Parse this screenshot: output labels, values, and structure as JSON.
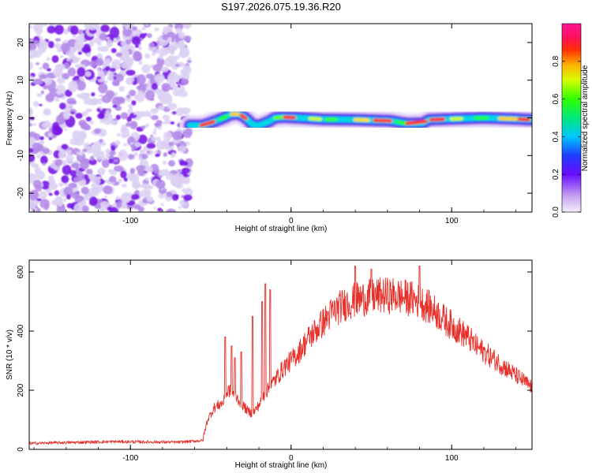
{
  "title": "S197.2026.075.19.36.R20",
  "colors": {
    "noise": "#8a2be2",
    "noise_light": "#d8c4f2",
    "snr_line": "#e8302a",
    "axis": "#000000"
  },
  "chart_data": [
    {
      "type": "heatmap",
      "name": "spectrogram",
      "xlabel": "Height of straight line (km)",
      "ylabel": "Frequency (Hz)",
      "xlim": [
        -163,
        150
      ],
      "ylim": [
        -25,
        25
      ],
      "xticks": [
        -100,
        0,
        100
      ],
      "xtick_labels": [
        "-100",
        "0",
        "100"
      ],
      "yticks": [
        -20,
        -10,
        0,
        10,
        20
      ],
      "ytick_labels": [
        "-20",
        "-10",
        "0",
        "10",
        "20"
      ],
      "noise_region_x": [
        -163,
        -63
      ],
      "signal_start_x": -63,
      "ridge_frequency": [
        [
          -63,
          -2
        ],
        [
          -55,
          -2
        ],
        [
          -48,
          -1
        ],
        [
          -42,
          0
        ],
        [
          -37,
          1
        ],
        [
          -33,
          1
        ],
        [
          -30,
          0.5
        ],
        [
          -27,
          -0.5
        ],
        [
          -24,
          -1.8
        ],
        [
          -20,
          -2
        ],
        [
          -14,
          -1
        ],
        [
          -10,
          0
        ],
        [
          -5,
          0.2
        ],
        [
          5,
          0
        ],
        [
          20,
          -0.4
        ],
        [
          40,
          -0.5
        ],
        [
          62,
          -0.8
        ],
        [
          72,
          -1.5
        ],
        [
          82,
          -1.4
        ],
        [
          86,
          -0.5
        ],
        [
          100,
          -0.3
        ],
        [
          120,
          0
        ],
        [
          140,
          -0.3
        ],
        [
          150,
          -0.5
        ]
      ],
      "colorbar": {
        "label": "Normalized spectral amplitude",
        "range": [
          0,
          1
        ],
        "ticks": [
          0.0,
          0.2,
          0.4,
          0.6,
          0.8
        ],
        "tick_labels": [
          "0.0",
          "0.2",
          "0.4",
          "0.6",
          "0.8"
        ]
      }
    },
    {
      "type": "line",
      "name": "snr",
      "xlabel": "Height of straight line (km)",
      "ylabel": "SNR (10 * v/v)",
      "xlim": [
        -163,
        150
      ],
      "ylim": [
        0,
        640
      ],
      "xticks": [
        -100,
        0,
        100
      ],
      "xtick_labels": [
        "-100",
        "0",
        "100"
      ],
      "yticks": [
        0,
        200,
        400,
        600
      ],
      "ytick_labels": [
        "0",
        "200",
        "400",
        "600"
      ],
      "series": [
        {
          "name": "SNR",
          "x": [
            -163,
            -150,
            -130,
            -110,
            -90,
            -70,
            -55,
            -52,
            -48,
            -45,
            -42,
            -39,
            -36,
            -33,
            -30,
            -27,
            -24,
            -20,
            -16,
            -12,
            -8,
            -4,
            0,
            5,
            10,
            15,
            20,
            25,
            30,
            35,
            40,
            45,
            50,
            55,
            60,
            65,
            70,
            75,
            80,
            85,
            90,
            95,
            100,
            105,
            110,
            115,
            120,
            125,
            130,
            135,
            140,
            145,
            150
          ],
          "y": [
            20,
            22,
            24,
            26,
            25,
            24,
            30,
            100,
            140,
            150,
            160,
            200,
            190,
            170,
            150,
            130,
            120,
            150,
            190,
            220,
            250,
            280,
            300,
            330,
            370,
            400,
            430,
            460,
            480,
            495,
            505,
            510,
            515,
            520,
            520,
            520,
            515,
            510,
            500,
            485,
            465,
            440,
            420,
            400,
            380,
            350,
            330,
            310,
            290,
            270,
            250,
            230,
            210
          ],
          "spikes": [
            {
              "x": -41,
              "y": 380
            },
            {
              "x": -37,
              "y": 350
            },
            {
              "x": -35,
              "y": 310
            },
            {
              "x": -31,
              "y": 330
            },
            {
              "x": -24,
              "y": 450
            },
            {
              "x": -18,
              "y": 500
            },
            {
              "x": -16,
              "y": 560
            },
            {
              "x": -13,
              "y": 540
            },
            {
              "x": 40,
              "y": 620
            },
            {
              "x": 50,
              "y": 610
            },
            {
              "x": 80,
              "y": 620
            }
          ]
        }
      ]
    }
  ]
}
